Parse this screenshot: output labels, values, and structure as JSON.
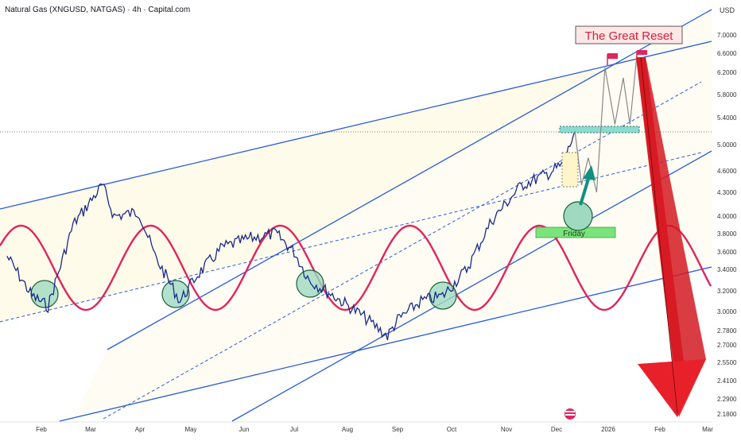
{
  "header": {
    "title": "Natural Gas (XNGUSD, NATGAS) · 4h · Capital.com",
    "currency": "USD"
  },
  "annotations": {
    "banner": "The Great Reset",
    "friday_label": "Friday"
  },
  "colors": {
    "price_line": "#1a2a8a",
    "channel": "#2a5bd7",
    "sine": "#e0245e",
    "arrow": "#e8202a",
    "green_zone": "#7be37b",
    "circle_fill": "#9fd9c0",
    "teal_arrow": "#12907f",
    "band_fill": "#fff8dc"
  },
  "chart_data": {
    "type": "line",
    "title": "Natural Gas (XNGUSD, NATGAS) · 4h · Capital.com",
    "y_axis": {
      "label": "USD",
      "ticks": [
        "7.0000",
        "6.6000",
        "6.2000",
        "5.8000",
        "5.4000",
        "5.0000",
        "4.6000",
        "4.3000",
        "4.0000",
        "3.8000",
        "3.6000",
        "3.4000",
        "3.2000",
        "3.0000",
        "2.7800",
        "2.7000",
        "2.5500",
        "2.4100",
        "2.2900",
        "2.1800"
      ]
    },
    "x_axis": {
      "ticks": [
        "Feb",
        "Mar",
        "Apr",
        "May",
        "Jun",
        "Jul",
        "Aug",
        "Sep",
        "Oct",
        "Nov",
        "Dec",
        "2026",
        "Feb",
        "Mar"
      ]
    },
    "series": [
      {
        "values_note": "",
        "x": [
          "Jan 10",
          "Jan 25",
          "Feb 5",
          "Feb 20",
          "Mar 8",
          "Mar 15",
          "Mar 30",
          "Apr 10",
          "Apr 25",
          "May 5",
          "May 20",
          "Jun 5",
          "Jun 20",
          "Jul 1",
          "Jul 10",
          "Jul 25",
          "Aug 10",
          "Aug 25",
          "Sep 1",
          "Sep 15",
          "Sep 28",
          "Oct 10",
          "Oct 25",
          "Nov 10",
          "Nov 25",
          "Dec 5",
          "Dec 12"
        ],
        "y": [
          3.55,
          3.15,
          3.05,
          3.9,
          4.4,
          4.0,
          4.05,
          3.55,
          3.1,
          3.35,
          3.65,
          3.75,
          3.8,
          3.6,
          3.3,
          3.15,
          2.95,
          2.75,
          2.9,
          3.1,
          3.15,
          3.4,
          3.95,
          4.4,
          4.55,
          4.7,
          5.2
        ]
      }
    ],
    "projection": {
      "x": [
        "Dec 12",
        "Dec 16",
        "Dec 20",
        "Dec 25",
        "Dec 30",
        "Jan 5",
        "Jan 10",
        "Jan 14",
        "Jan 18"
      ],
      "y": [
        5.2,
        4.4,
        4.8,
        4.3,
        6.3,
        5.3,
        6.1,
        5.3,
        6.5
      ]
    },
    "grid": false
  }
}
